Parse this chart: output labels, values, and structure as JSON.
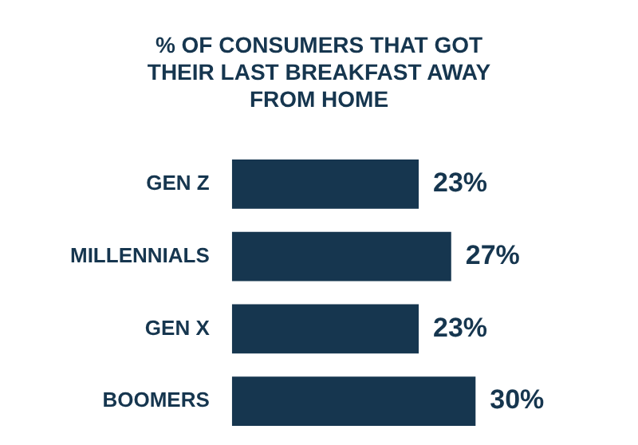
{
  "chart_data": {
    "type": "bar",
    "orientation": "horizontal",
    "title": "% OF CONSUMERS THAT GOT THEIR LAST BREAKFAST AWAY FROM HOME",
    "categories": [
      "GEN Z",
      "MILLENNIALS",
      "GEN X",
      "BOOMERS"
    ],
    "values": [
      23,
      27,
      23,
      30
    ],
    "value_labels": [
      "23%",
      "27%",
      "23%",
      "30%"
    ],
    "color": "#16364f",
    "grid": false,
    "legend": false
  }
}
